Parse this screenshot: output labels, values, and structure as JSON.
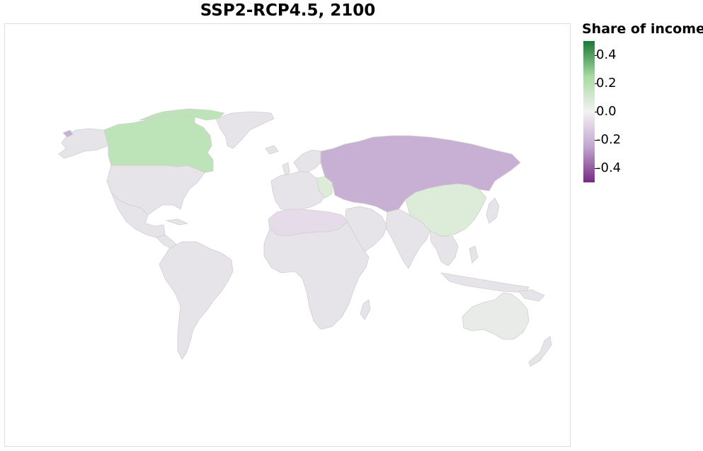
{
  "title": "SSP2-RCP4.5, 2100",
  "legend": {
    "title": "Share of income",
    "ticks": [
      "0.4",
      "0.2",
      "0.0",
      "-0.2",
      "-0.4"
    ],
    "tick_values": [
      0.4,
      0.2,
      0.0,
      -0.2,
      -0.4
    ],
    "domain": [
      -0.5,
      0.5
    ],
    "colors": {
      "max": "#1b7837",
      "high": "#a6dba0",
      "mid": "#f2f2f2",
      "low": "#c2a5cf",
      "min": "#762a83"
    }
  },
  "map": {
    "projection": "equirectangular-like world map",
    "region_colors": {
      "canada": "#bde3b8",
      "russia_central_asia": "#c8b0d5",
      "china": "#dcecd8",
      "north_africa": "#e6dce9",
      "alaska_tip": "#c8b0d5",
      "default": "#e6e4e8",
      "australia": "#e8ebe8",
      "border": "#cfcfcf"
    }
  }
}
